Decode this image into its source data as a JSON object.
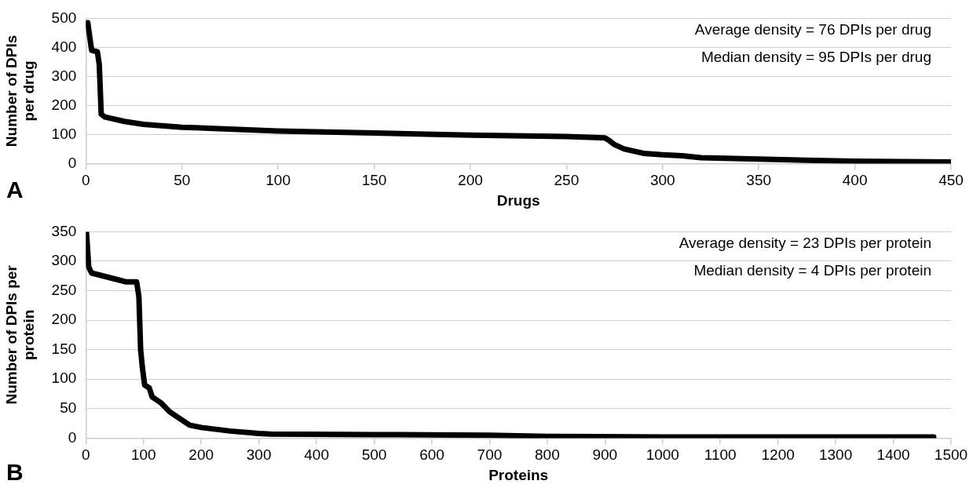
{
  "chart_data": [
    {
      "type": "line",
      "xlabel": "Drugs",
      "ylabel": "Number of DPIs per drug",
      "xlim": [
        0,
        450
      ],
      "xticks": [
        0,
        50,
        100,
        150,
        200,
        250,
        300,
        350,
        400,
        450
      ],
      "ylim": [
        0,
        500
      ],
      "yticks": [
        0,
        100,
        200,
        300,
        400,
        500
      ],
      "grid": "y",
      "legend": false,
      "marker": "none",
      "line_style": "solid",
      "series": [
        {
          "color": "#000000",
          "x": [
            1,
            3,
            6,
            7,
            8,
            10,
            20,
            30,
            50,
            100,
            150,
            200,
            250,
            270,
            272,
            275,
            280,
            290,
            300,
            310,
            320,
            350,
            400,
            450
          ],
          "values": [
            485,
            390,
            385,
            340,
            170,
            160,
            145,
            135,
            125,
            112,
            105,
            98,
            93,
            88,
            80,
            65,
            50,
            35,
            30,
            27,
            20,
            15,
            8,
            5
          ]
        }
      ],
      "annotations": [
        "A",
        "Average density = 76 DPIs per drug",
        "Median density = 95 DPIs per drug"
      ]
    },
    {
      "type": "line",
      "xlabel": "Proteins",
      "ylabel": "Number of DPIs per protein",
      "xlim": [
        0,
        1500
      ],
      "xticks": [
        0,
        100,
        200,
        300,
        400,
        500,
        600,
        700,
        800,
        900,
        1000,
        1100,
        1200,
        1300,
        1400,
        1500
      ],
      "ylim": [
        0,
        350
      ],
      "yticks": [
        0,
        50,
        100,
        150,
        200,
        250,
        300,
        350
      ],
      "grid": "y",
      "legend": false,
      "marker": "none",
      "line_style": "solid",
      "series": [
        {
          "color": "#000000",
          "x": [
            1,
            5,
            10,
            50,
            70,
            88,
            92,
            95,
            98,
            102,
            110,
            115,
            130,
            145,
            160,
            180,
            200,
            250,
            300,
            320,
            500,
            700,
            800,
            1000,
            1470
          ],
          "values": [
            350,
            290,
            280,
            270,
            265,
            265,
            240,
            150,
            120,
            90,
            85,
            70,
            60,
            45,
            35,
            22,
            18,
            12,
            8,
            7,
            6,
            5,
            3,
            2,
            2
          ]
        }
      ],
      "annotations": [
        "B",
        "Average density = 23 DPIs per protein",
        "Median density = 4 DPIs per protein"
      ]
    }
  ]
}
